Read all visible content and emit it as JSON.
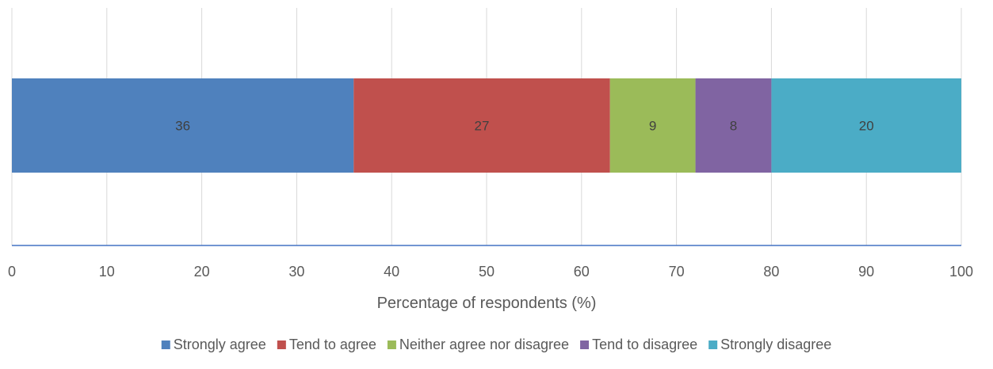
{
  "chart_data": {
    "type": "bar",
    "orientation": "horizontal",
    "stacked": true,
    "categories": [
      ""
    ],
    "series": [
      {
        "name": "Strongly agree",
        "values": [
          36
        ],
        "color": "#4F81BD"
      },
      {
        "name": "Tend to agree",
        "values": [
          27
        ],
        "color": "#C0504D"
      },
      {
        "name": "Neither agree nor disagree",
        "values": [
          9
        ],
        "color": "#9BBB59"
      },
      {
        "name": "Tend to disagree",
        "values": [
          8
        ],
        "color": "#8064A2"
      },
      {
        "name": "Strongly disagree",
        "values": [
          20
        ],
        "color": "#4BACC6"
      }
    ],
    "xlabel": "Percentage of respondents (%)",
    "xlim": [
      0,
      100
    ],
    "xticks": [
      0,
      10,
      20,
      30,
      40,
      50,
      60,
      70,
      80,
      90,
      100
    ],
    "grid": true,
    "legend": "bottom",
    "data_labels": true
  }
}
